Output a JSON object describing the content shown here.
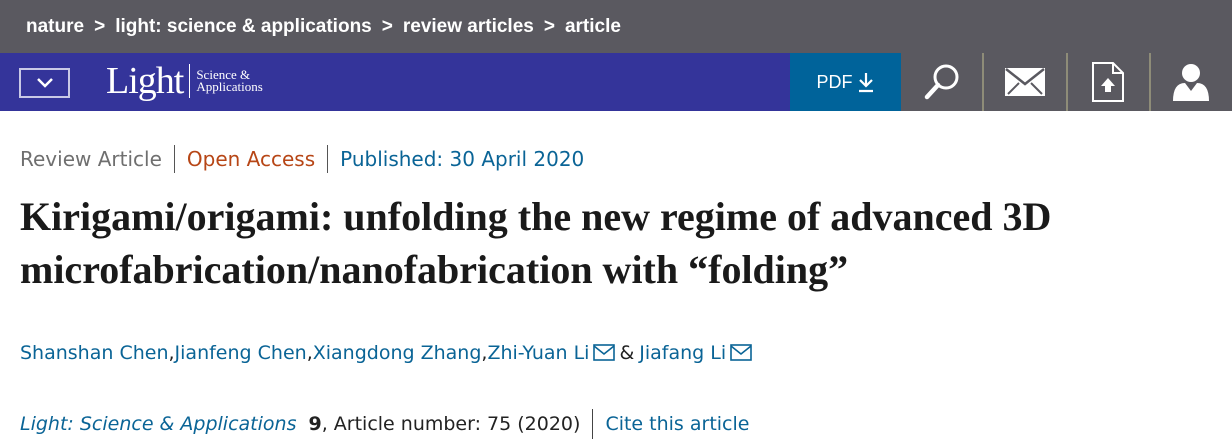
{
  "breadcrumbs": [
    "nature",
    "light: science & applications",
    "review articles",
    "article"
  ],
  "breadcrumb_separator": ">",
  "logo": {
    "main": "Light",
    "sub1": "Science &",
    "sub2": "Applications"
  },
  "toolbar": {
    "pdf_label": "PDF",
    "icons": [
      "search-icon",
      "mail-icon",
      "upload-file-icon",
      "user-icon"
    ]
  },
  "article": {
    "type": "Review Article",
    "access": "Open Access",
    "published": "Published: 30 April 2020",
    "title": "Kirigami/origami: unfolding the new regime of advanced 3D microfabrication/nanofabrication with “folding”",
    "authors": [
      "Shanshan Chen",
      "Jianfeng Chen",
      "Xiangdong Zhang",
      "Zhi-Yuan Li",
      "Jiafang Li"
    ],
    "author_sep": ", ",
    "author_and": "&",
    "journal": "Light: Science & Applications",
    "volume": "9",
    "article_number": ", Article number: 75 (2020)",
    "cite": "Cite this article"
  },
  "colors": {
    "nav": "#34349a",
    "pdf": "#00639a",
    "bar": "#5a5960",
    "link": "#0a6496",
    "open_access": "#b74616"
  }
}
